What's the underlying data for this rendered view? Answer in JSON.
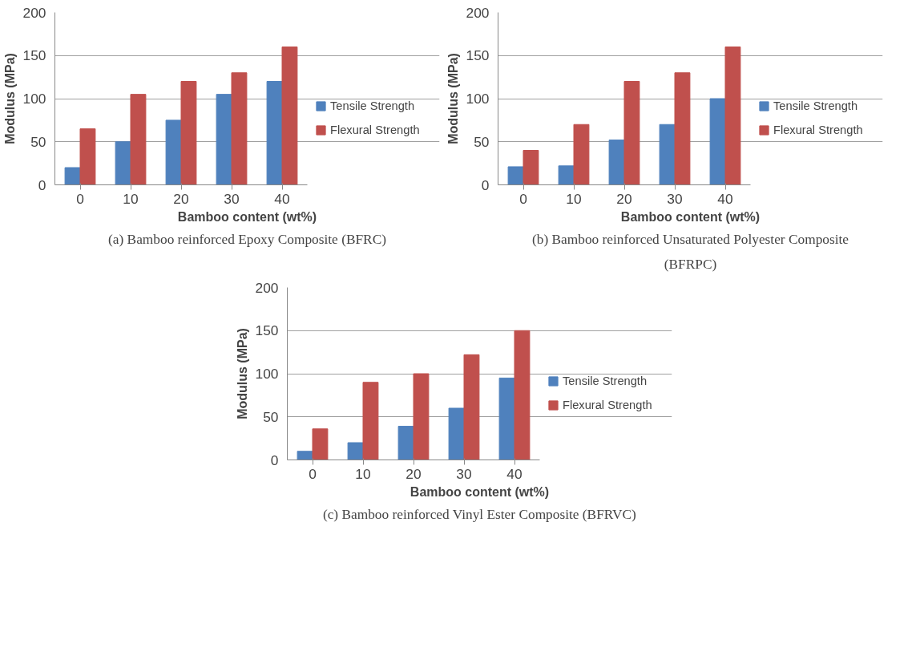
{
  "chart_data": [
    {
      "type": "bar",
      "categories": [
        "0",
        "10",
        "20",
        "30",
        "40"
      ],
      "xlabel": "Bamboo content (wt%)",
      "ylabel": "Modulus (MPa)",
      "ylim": [
        0,
        200
      ],
      "yticks": [
        0,
        50,
        100,
        150,
        200
      ],
      "grid": "y",
      "legend": "right",
      "series": [
        {
          "name": "Tensile Strength",
          "color": "#4f81bd",
          "values": [
            20,
            50,
            75,
            105,
            120
          ]
        },
        {
          "name": "Flexural Strength",
          "color": "#c0504d",
          "values": [
            65,
            105,
            120,
            130,
            160
          ]
        }
      ],
      "annotations": [
        "(a) Bamboo reinforced Epoxy Composite (BFRC)"
      ]
    },
    {
      "type": "bar",
      "categories": [
        "0",
        "10",
        "20",
        "30",
        "40"
      ],
      "xlabel": "Bamboo content (wt%)",
      "ylabel": "Modulus (MPa)",
      "ylim": [
        0,
        200
      ],
      "yticks": [
        0,
        50,
        100,
        150,
        200
      ],
      "grid": "y",
      "legend": "right",
      "series": [
        {
          "name": "Tensile Strength",
          "color": "#4f81bd",
          "values": [
            21,
            22,
            52,
            70,
            100
          ]
        },
        {
          "name": "Flexural Strength",
          "color": "#c0504d",
          "values": [
            40,
            70,
            120,
            130,
            160
          ]
        }
      ],
      "annotations": [
        "(b) Bamboo reinforced Unsaturated Polyester Composite (BFRPC)"
      ]
    },
    {
      "type": "bar",
      "categories": [
        "0",
        "10",
        "20",
        "30",
        "40"
      ],
      "xlabel": "Bamboo content (wt%)",
      "ylabel": "Modulus (MPa)",
      "ylim": [
        0,
        200
      ],
      "yticks": [
        0,
        50,
        100,
        150,
        200
      ],
      "grid": "y",
      "legend": "right",
      "series": [
        {
          "name": "Tensile Strength",
          "color": "#4f81bd",
          "values": [
            10,
            20,
            39,
            60,
            95
          ]
        },
        {
          "name": "Flexural Strength",
          "color": "#c0504d",
          "values": [
            36,
            90,
            100,
            122,
            150
          ]
        }
      ],
      "annotations": [
        "(c) Bamboo reinforced Vinyl Ester Composite (BFRVC)"
      ]
    }
  ]
}
